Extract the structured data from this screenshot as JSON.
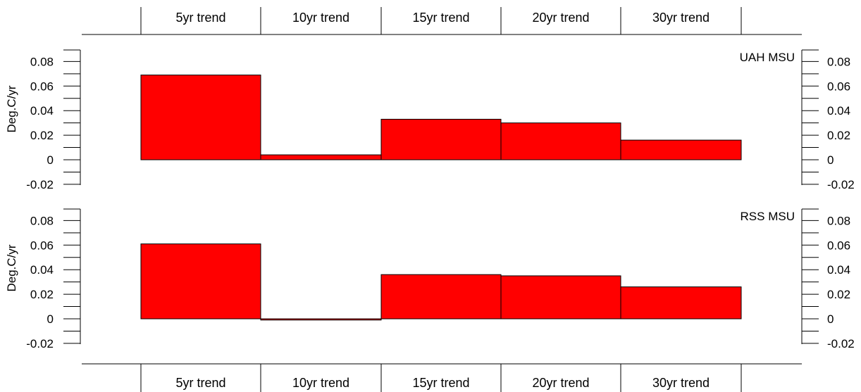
{
  "chart_data": [
    {
      "type": "bar",
      "panel_label": "UAH MSU",
      "ylabel": "Deg.C/yr",
      "ylim": [
        -0.02,
        0.08
      ],
      "ytick_labels": [
        "0.08",
        "0.06",
        "0.04",
        "0.02",
        "0",
        "-0.02"
      ],
      "yticks": [
        0.08,
        0.06,
        0.04,
        0.02,
        0,
        -0.02
      ],
      "categories": [
        "5yr trend",
        "10yr trend",
        "15yr trend",
        "20yr trend",
        "30yr trend"
      ],
      "values": [
        0.069,
        0.004,
        0.033,
        0.03,
        0.016
      ],
      "bar_color": "#ff0000"
    },
    {
      "type": "bar",
      "panel_label": "RSS MSU",
      "ylabel": "Deg.C/yr",
      "ylim": [
        -0.02,
        0.08
      ],
      "ytick_labels": [
        "0.08",
        "0.06",
        "0.04",
        "0.02",
        "0",
        "-0.02"
      ],
      "yticks": [
        0.08,
        0.06,
        0.04,
        0.02,
        0,
        -0.02
      ],
      "categories": [
        "5yr trend",
        "10yr trend",
        "15yr trend",
        "20yr trend",
        "30yr trend"
      ],
      "values": [
        0.061,
        -0.001,
        0.036,
        0.035,
        0.026
      ],
      "bar_color": "#ff0000"
    }
  ],
  "top_labels": [
    "5yr trend",
    "10yr trend",
    "15yr trend",
    "20yr trend",
    "30yr trend"
  ],
  "bottom_labels": [
    "5yr trend",
    "10yr trend",
    "15yr trend",
    "20yr trend",
    "30yr trend"
  ]
}
